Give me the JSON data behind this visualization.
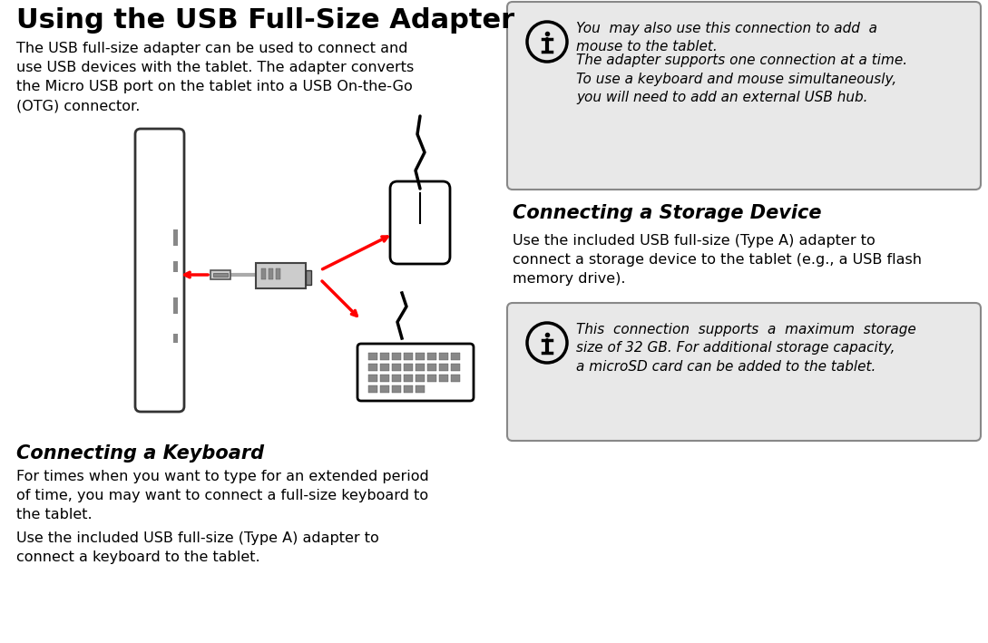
{
  "title": "Using the USB Full-Size Adapter",
  "bg_color": "#ffffff",
  "body_text_color": "#000000",
  "info_bg": "#e8e8e8",
  "info_border": "#888888",
  "title_fontsize": 22,
  "body_fontsize": 11.5,
  "section_fontsize": 15,
  "info_fontsize": 11,
  "intro_text": "The USB full-size adapter can be used to connect and\nuse USB devices with the tablet. The adapter converts\nthe Micro USB port on the tablet into a USB On-the-Go\n(OTG) connector.",
  "info_box1_line1": "You  may also use this connection to add  a\nmouse to the tablet.",
  "info_box1_line2": "The adapter supports one connection at a time.\nTo use a keyboard and mouse simultaneously,\nyou will need to add an external USB hub.",
  "section2_title": "Connecting a Storage Device",
  "section2_body": "Use the included USB full-size (Type A) adapter to\nconnect a storage device to the tablet (e.g., a USB flash\nmemory drive).",
  "info_box2_text": "This  connection  supports  a  maximum  storage\nsize of 32 GB. For additional storage capacity,\na microSD card can be added to the tablet.",
  "section1_title": "Connecting a Keyboard",
  "section1_body1": "For times when you want to type for an extended period\nof time, you may want to connect a full-size keyboard to\nthe tablet.",
  "section1_body2": "Use the included USB full-size (Type A) adapter to\nconnect a keyboard to the tablet."
}
